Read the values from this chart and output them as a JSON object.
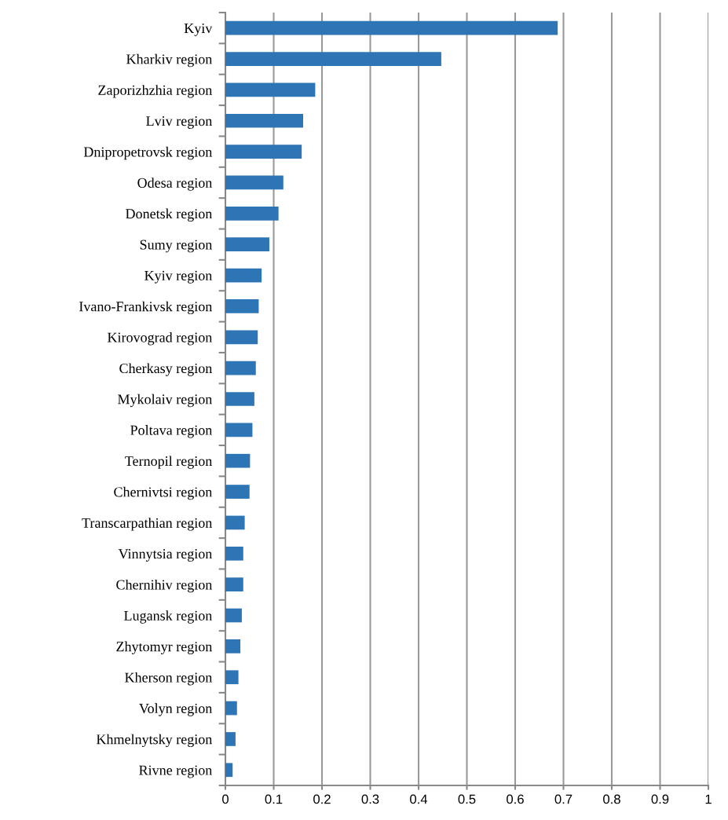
{
  "chart_data": {
    "type": "bar",
    "orientation": "horizontal",
    "categories": [
      "Kyiv",
      "Kharkiv region",
      "Zaporizhzhia region",
      "Lviv region",
      "Dnipropetrovsk region",
      "Odesa region",
      "Donetsk region",
      "Sumy region",
      "Kyiv region",
      "Ivano-Frankivsk region",
      "Kirovograd region",
      "Cherkasy region",
      "Mykolaiv region",
      "Poltava region",
      "Ternopil region",
      "Chernivtsi region",
      "Transcarpathian region",
      "Vinnytsia region",
      "Chernihiv region",
      "Lugansk region",
      "Zhytomyr region",
      "Kherson region",
      "Volyn region",
      "Khmelnytsky region",
      "Rivne region"
    ],
    "values": [
      0.688,
      0.447,
      0.186,
      0.161,
      0.158,
      0.12,
      0.11,
      0.091,
      0.075,
      0.069,
      0.067,
      0.063,
      0.06,
      0.056,
      0.051,
      0.05,
      0.04,
      0.037,
      0.037,
      0.034,
      0.031,
      0.027,
      0.024,
      0.021,
      0.015
    ],
    "color": "#2e75b6",
    "xlim": [
      0,
      1
    ],
    "xticks": [
      0,
      0.1,
      0.2,
      0.3,
      0.4,
      0.5,
      0.6,
      0.7,
      0.8,
      0.9,
      1
    ],
    "grid": "x",
    "legend": false
  }
}
